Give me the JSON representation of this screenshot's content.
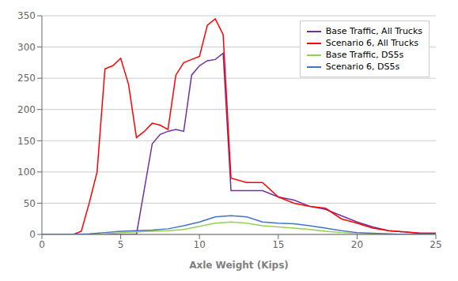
{
  "chart_data": {
    "type": "line",
    "title": "",
    "xlabel": "Axle Weight  (Kips)",
    "xlim": [
      0,
      25
    ],
    "ylim": [
      0,
      350
    ],
    "xticks": [
      0,
      5,
      10,
      15,
      20,
      25
    ],
    "yticks": [
      0,
      50,
      100,
      150,
      200,
      250,
      300,
      350
    ],
    "grid": true,
    "legend": "upper right",
    "series": [
      {
        "name": "Base Traffic, All Trucks",
        "color": "#7030a0",
        "x": [
          0,
          1,
          2,
          3,
          4,
          4.5,
          5,
          6,
          7,
          7.5,
          8,
          8.5,
          9,
          9.5,
          10,
          10.5,
          11,
          11.5,
          12,
          13,
          14,
          15,
          16,
          17,
          18,
          19,
          20,
          21,
          22,
          23,
          24,
          25
        ],
        "values": [
          0,
          0,
          0,
          0,
          0,
          0,
          0,
          0,
          145,
          160,
          165,
          168,
          165,
          255,
          270,
          278,
          280,
          290,
          70,
          70,
          70,
          60,
          55,
          45,
          40,
          30,
          20,
          12,
          6,
          4,
          2,
          2
        ]
      },
      {
        "name": "Scenario 6, All Trucks",
        "color": "#ff0000",
        "x": [
          0,
          1,
          2,
          2.5,
          3,
          3.5,
          4,
          4.5,
          5,
          5.5,
          6,
          6.5,
          7,
          7.5,
          8,
          8.5,
          9,
          9.5,
          10,
          10.5,
          11,
          11.5,
          12,
          13,
          14,
          15,
          16,
          17,
          18,
          19,
          20,
          21,
          22,
          23,
          24,
          25
        ],
        "values": [
          0,
          0,
          0,
          5,
          50,
          100,
          265,
          270,
          282,
          240,
          155,
          165,
          178,
          175,
          168,
          255,
          275,
          280,
          285,
          335,
          345,
          320,
          90,
          83,
          83,
          60,
          50,
          45,
          42,
          25,
          18,
          10,
          6,
          4,
          2,
          2
        ]
      },
      {
        "name": "Base Traffic, DS5s",
        "color": "#92d050",
        "x": [
          0,
          1,
          2,
          3,
          4,
          5,
          6,
          7,
          8,
          9,
          10,
          11,
          12,
          13,
          14,
          15,
          16,
          17,
          18,
          19,
          20,
          21,
          22,
          23,
          24,
          25
        ],
        "values": [
          0,
          0,
          0,
          0,
          1,
          3,
          4,
          5,
          6,
          8,
          13,
          18,
          20,
          18,
          14,
          12,
          10,
          8,
          5,
          3,
          2,
          1,
          0,
          0,
          0,
          0
        ]
      },
      {
        "name": "Scenario 6, DS5s",
        "color": "#4472c4",
        "x": [
          0,
          1,
          2,
          3,
          4,
          5,
          6,
          7,
          8,
          9,
          10,
          11,
          12,
          13,
          14,
          15,
          16,
          17,
          18,
          19,
          20,
          21,
          22,
          23,
          24,
          25
        ],
        "values": [
          0,
          0,
          0,
          1,
          3,
          5,
          6,
          7,
          9,
          14,
          20,
          28,
          30,
          28,
          20,
          18,
          17,
          14,
          10,
          6,
          3,
          2,
          1,
          0,
          0,
          0
        ]
      }
    ]
  }
}
